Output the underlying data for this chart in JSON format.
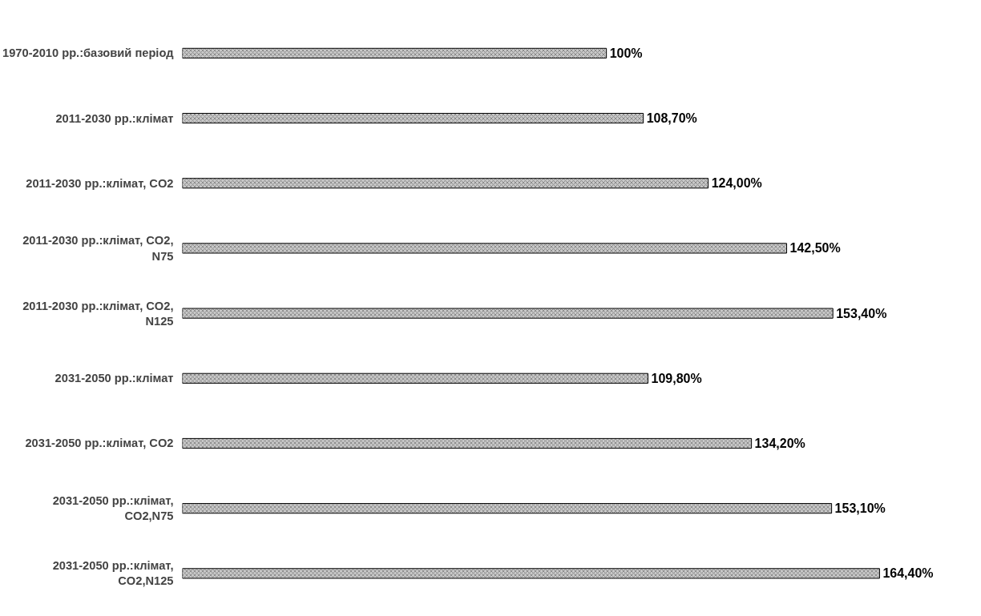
{
  "chart_data": {
    "type": "bar",
    "orientation": "horizontal",
    "categories": [
      "1970-2010 рр.:базовий період",
      "2011-2030 рр.:клімат",
      "2011-2030 рр.:клімат, CO2",
      "2011-2030 рр.:клімат, CO2,\nN75",
      "2011-2030 рр.:клімат, CO2,\nN125",
      "2031-2050 рр.:клімат",
      "2031-2050 рр.:клімат, CO2",
      "2031-2050 рр.:клімат,\nCO2,N75",
      "2031-2050 рр.:клімат,\nCO2,N125"
    ],
    "values": [
      100,
      108.7,
      124.0,
      142.5,
      153.4,
      109.8,
      134.2,
      153.1,
      164.4
    ],
    "value_labels": [
      "100%",
      "108,70%",
      "124,00%",
      "142,50%",
      "153,40%",
      "109,80%",
      "134,20%",
      "153,10%",
      "164,40%"
    ],
    "color": "#c8c8c8"
  }
}
